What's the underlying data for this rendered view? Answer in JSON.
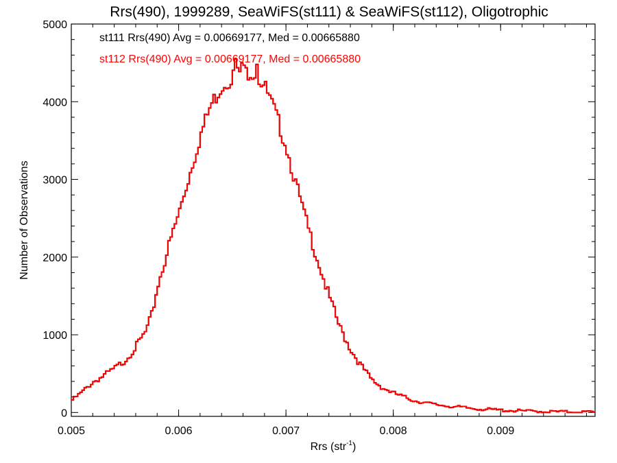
{
  "chart_data": {
    "type": "histogram",
    "title": "Rrs(490), 1999289, SeaWiFS(st111) & SeaWiFS(st112), Oligotrophic",
    "xlabel": "Rrs (str",
    "xlabel_sup": "-1",
    "xlabel_end": ")",
    "ylabel": "Number of Observations",
    "xlim": [
      0.005,
      0.00988
    ],
    "ylim": [
      -50,
      5000
    ],
    "xticks": [
      0.005,
      0.006,
      0.007,
      0.008,
      0.009
    ],
    "xtick_labels": [
      "0.005",
      "0.006",
      "0.007",
      "0.008",
      "0.009"
    ],
    "yticks": [
      0,
      1000,
      2000,
      3000,
      4000,
      5000
    ],
    "ytick_labels": [
      "0",
      "1000",
      "2000",
      "3000",
      "4000",
      "5000"
    ],
    "grid": false,
    "legend": [
      {
        "text": "st111 Rrs(490) Avg = 0.00669177, Med = 0.00665880",
        "color": "#000000"
      },
      {
        "text": "st112 Rrs(490) Avg = 0.00669177, Med = 0.00665880",
        "color": "#ff0000"
      }
    ],
    "bin_width": 2e-05,
    "x_start": 0.005,
    "anchors": [
      [
        0.005,
        150
      ],
      [
        0.0051,
        260
      ],
      [
        0.0052,
        390
      ],
      [
        0.0053,
        470
      ],
      [
        0.0054,
        560
      ],
      [
        0.0055,
        670
      ],
      [
        0.0056,
        840
      ],
      [
        0.0057,
        1050
      ],
      [
        0.00575,
        1250
      ],
      [
        0.0058,
        1600
      ],
      [
        0.0059,
        2100
      ],
      [
        0.006,
        2550
      ],
      [
        0.0061,
        3050
      ],
      [
        0.0062,
        3550
      ],
      [
        0.0063,
        3950
      ],
      [
        0.0064,
        4200
      ],
      [
        0.0065,
        4330
      ],
      [
        0.0066,
        4380
      ],
      [
        0.0067,
        4400
      ],
      [
        0.0068,
        4200
      ],
      [
        0.0069,
        3850
      ],
      [
        0.007,
        3450
      ],
      [
        0.0071,
        2900
      ],
      [
        0.0072,
        2400
      ],
      [
        0.0073,
        1950
      ],
      [
        0.0074,
        1500
      ],
      [
        0.0075,
        1100
      ],
      [
        0.0076,
        820
      ],
      [
        0.0077,
        600
      ],
      [
        0.0078,
        420
      ],
      [
        0.0079,
        320
      ],
      [
        0.008,
        250
      ],
      [
        0.0082,
        150
      ],
      [
        0.0084,
        100
      ],
      [
        0.0086,
        70
      ],
      [
        0.0088,
        45
      ],
      [
        0.009,
        30
      ],
      [
        0.0092,
        20
      ],
      [
        0.0094,
        12
      ],
      [
        0.0096,
        8
      ],
      [
        0.00988,
        5
      ]
    ]
  }
}
